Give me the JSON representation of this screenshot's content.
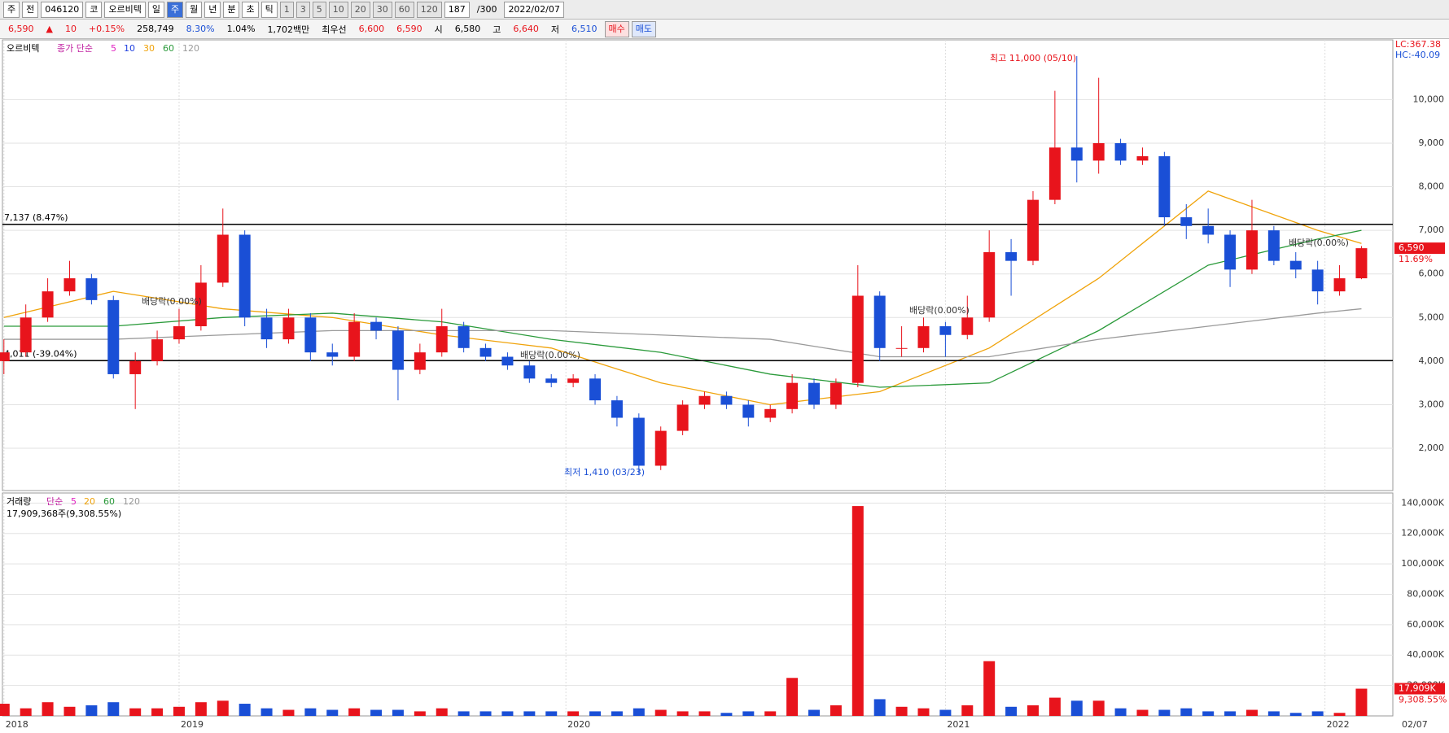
{
  "toolbar": {
    "items": [
      "주",
      "전",
      "046120",
      "코",
      "오르비텍",
      "일",
      "주",
      "월",
      "년",
      "분",
      "초",
      "틱",
      "1",
      "3",
      "5",
      "10",
      "20",
      "30",
      "60",
      "120"
    ],
    "count": "187",
    "max": "/300",
    "date": "2022/02/07"
  },
  "quote": {
    "price": "6,590",
    "arrow": "▲",
    "change": "10",
    "rate": "+0.15%",
    "volume": "258,749",
    "turnover": "8.30%",
    "ratio": "1.04%",
    "amount": "1,702백만",
    "best": "최우선",
    "ask": "6,600",
    "bid": "6,590",
    "open_label": "시",
    "open": "6,580",
    "high_label": "고",
    "high": "6,640",
    "low_label": "저",
    "low": "6,510",
    "buy": "매수",
    "sell": "매도"
  },
  "chart_data": [
    {
      "type": "candlestick",
      "title": "오르비텍",
      "legend_prefix": "종가 단순",
      "legend_extra": [
        {
          "name": "5",
          "color": "#e020c0"
        },
        {
          "name": "10",
          "color": "#2040e0"
        }
      ],
      "x": [
        0,
        3,
        6,
        9,
        12,
        15,
        18,
        21,
        24,
        27,
        30,
        33,
        36,
        39,
        42,
        45,
        48,
        51,
        54,
        57,
        60,
        63,
        66,
        69,
        72,
        75,
        78,
        81,
        84,
        87,
        90,
        93,
        96,
        99,
        102,
        105,
        108,
        111,
        114,
        117,
        120,
        123,
        126,
        129,
        132,
        135,
        138,
        141,
        144,
        147,
        150,
        153,
        156,
        159,
        162,
        165,
        168,
        171,
        174,
        177,
        180,
        183,
        186
      ],
      "open": [
        4000,
        4200,
        5000,
        5600,
        5900,
        5400,
        3700,
        4000,
        4500,
        4800,
        5800,
        6900,
        5000,
        4500,
        5000,
        4200,
        4100,
        4900,
        4700,
        3800,
        4200,
        4800,
        4300,
        4100,
        3900,
        3600,
        3500,
        3600,
        3100,
        2700,
        1600,
        2400,
        3000,
        3200,
        3000,
        2700,
        2900,
        3500,
        3000,
        3500,
        5500,
        4300,
        4300,
        4800,
        4600,
        5000,
        6500,
        6300,
        7700,
        8900,
        8600,
        9000,
        8600,
        8700,
        7300,
        7100,
        6900,
        6100,
        7000,
        6300,
        6100,
        5600,
        5900
      ],
      "high": [
        4500,
        5300,
        5900,
        6300,
        6000,
        5500,
        4200,
        4700,
        5200,
        6200,
        7500,
        7000,
        5200,
        5200,
        5100,
        4400,
        5100,
        5000,
        4800,
        4400,
        5200,
        4900,
        4400,
        4200,
        4000,
        3700,
        3700,
        3700,
        3200,
        2800,
        2500,
        3100,
        3300,
        3300,
        3100,
        3000,
        3700,
        3600,
        3600,
        6200,
        5600,
        4800,
        5000,
        4900,
        5500,
        7000,
        6800,
        7900,
        10200,
        11000,
        10500,
        9100,
        8900,
        8800,
        7600,
        7500,
        7000,
        7700,
        7100,
        6500,
        6300,
        6200,
        6640
      ],
      "low": [
        3700,
        4100,
        4900,
        5500,
        5300,
        3600,
        2900,
        3900,
        4400,
        4700,
        5700,
        4800,
        4300,
        4400,
        4000,
        3900,
        4000,
        4500,
        3100,
        3700,
        4100,
        4200,
        4000,
        3800,
        3500,
        3400,
        3400,
        3000,
        2500,
        1410,
        1500,
        2300,
        2900,
        2900,
        2500,
        2600,
        2800,
        2900,
        2900,
        3400,
        4000,
        4100,
        4200,
        4100,
        4500,
        4900,
        5500,
        6200,
        7600,
        8100,
        8300,
        8500,
        8500,
        7100,
        6800,
        6700,
        5700,
        6000,
        6200,
        5900,
        5300,
        5500,
        5880
      ],
      "close": [
        4200,
        5000,
        5600,
        5900,
        5400,
        3700,
        4000,
        4500,
        4800,
        5800,
        6900,
        5000,
        4500,
        5000,
        4200,
        4100,
        4900,
        4700,
        3800,
        4200,
        4800,
        4300,
        4100,
        3900,
        3600,
        3500,
        3600,
        3100,
        2700,
        1600,
        2400,
        3000,
        3200,
        3000,
        2700,
        2900,
        3500,
        3000,
        3500,
        5500,
        4300,
        4300,
        4800,
        4600,
        5000,
        6500,
        6300,
        7700,
        8900,
        8600,
        9000,
        8600,
        8700,
        7300,
        7100,
        6900,
        6100,
        7000,
        6300,
        6100,
        5600,
        5900,
        6590
      ],
      "up_color": "#e8141c",
      "down_color": "#1a4fd6",
      "series": [
        {
          "name": "30",
          "color": "#f0a30a",
          "x": [
            0,
            15,
            30,
            45,
            60,
            75,
            90,
            105,
            120,
            135,
            150,
            165,
            180,
            186
          ],
          "values": [
            5000,
            5600,
            5200,
            5000,
            4600,
            4300,
            3500,
            3000,
            3300,
            4300,
            5900,
            7900,
            7000,
            6700
          ]
        },
        {
          "name": "60",
          "color": "#2a9a3a",
          "x": [
            0,
            15,
            30,
            45,
            60,
            75,
            90,
            105,
            120,
            135,
            150,
            165,
            180,
            186
          ],
          "values": [
            4800,
            4800,
            5000,
            5100,
            4900,
            4500,
            4200,
            3700,
            3400,
            3500,
            4700,
            6200,
            6800,
            7000
          ]
        },
        {
          "name": "120",
          "color": "#9a9a9a",
          "x": [
            0,
            15,
            30,
            45,
            60,
            75,
            90,
            105,
            120,
            135,
            150,
            165,
            180,
            186
          ],
          "values": [
            4500,
            4500,
            4600,
            4700,
            4700,
            4700,
            4600,
            4500,
            4100,
            4100,
            4500,
            4800,
            5100,
            5200
          ]
        }
      ],
      "xlim": [
        -0.2,
        190.3
      ],
      "xticks": [
        {
          "value": 0,
          "label": "2018"
        },
        {
          "value": 24,
          "label": "2019"
        },
        {
          "value": 77,
          "label": "2020"
        },
        {
          "value": 129,
          "label": "2021"
        },
        {
          "value": 181,
          "label": "2022"
        },
        {
          "value": 186,
          "label": "02/07"
        }
      ],
      "ylim": [
        1030,
        11370
      ],
      "yticks": [
        {
          "value": 2000,
          "label": "2,000"
        },
        {
          "value": 3000,
          "label": "3,000"
        },
        {
          "value": 4000,
          "label": "4,000"
        },
        {
          "value": 5000,
          "label": "5,000"
        },
        {
          "value": 6000,
          "label": "6,000"
        },
        {
          "value": 7000,
          "label": "7,000"
        },
        {
          "value": 8000,
          "label": "8,000"
        },
        {
          "value": 9000,
          "label": "9,000"
        },
        {
          "value": 10000,
          "label": "10,000"
        }
      ],
      "lines": [
        {
          "value": 7137,
          "label": "7,137 (8.47%)"
        },
        {
          "value": 4011,
          "label": "4,011 (-39.04%)"
        }
      ],
      "annotations": [
        "최고 11,000 (05/10)",
        "최저 1,410 (03/23)"
      ],
      "dividend_labels": [
        "배당락(0.00%)",
        "배당락(0.00%)",
        "배당락(0.00%)",
        "배당락(0.00%)"
      ],
      "corner_labels": [
        "LC:367.38",
        "HC:-40.09"
      ],
      "last_tag": {
        "value": 6590,
        "label": "6,590",
        "change": "11.69%"
      }
    },
    {
      "type": "bar",
      "title": "거래량",
      "legend_prefix": "단순",
      "legend_extra": [
        {
          "name": "5",
          "color": "#e020c0"
        },
        {
          "name": "20",
          "color": "#f0a30a"
        },
        {
          "name": "60",
          "color": "#2a9a3a"
        },
        {
          "name": "120",
          "color": "#9a9a9a"
        }
      ],
      "info": "17,909,368주(9,308.55%)",
      "values": [
        8000,
        5000,
        9000,
        6000,
        7000,
        9000,
        5000,
        5000,
        6000,
        9000,
        10000,
        8000,
        5000,
        4000,
        5000,
        4000,
        5000,
        4000,
        4000,
        3000,
        5000,
        3000,
        3000,
        3000,
        3000,
        3000,
        3000,
        3000,
        3000,
        5000,
        4000,
        3000,
        3000,
        2000,
        3000,
        3000,
        25000,
        4000,
        7000,
        138000,
        11000,
        6000,
        5000,
        4000,
        7000,
        36000,
        6000,
        7000,
        12000,
        10000,
        10000,
        5000,
        4000,
        4000,
        5000,
        3000,
        3000,
        4000,
        3000,
        2000,
        3000,
        2000,
        17909
      ],
      "ylim": [
        0,
        146600
      ],
      "yticks": [
        {
          "value": 20000,
          "label": "20,000K"
        },
        {
          "value": 40000,
          "label": "40,000K"
        },
        {
          "value": 60000,
          "label": "60,000K"
        },
        {
          "value": 80000,
          "label": "80,000K"
        },
        {
          "value": 100000,
          "label": "100,000K"
        },
        {
          "value": 120000,
          "label": "120,000K"
        },
        {
          "value": 140000,
          "label": "140,000K"
        }
      ],
      "last_tag": {
        "value": 17909,
        "label": "17,909K",
        "change": "9,308.55%"
      }
    }
  ]
}
